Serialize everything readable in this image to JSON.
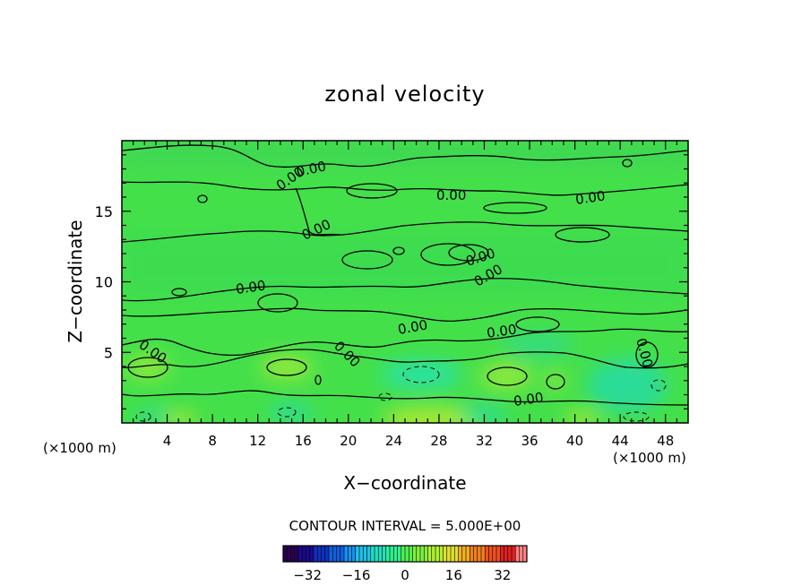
{
  "chart_data": {
    "type": "contour",
    "title": "zonal velocity",
    "xlabel": "X−coordinate",
    "ylabel": "Z−coordinate",
    "x_unit_left": "(×1000 m)",
    "x_unit_right": "(×1000 m)",
    "xlim": [
      0,
      50
    ],
    "ylim": [
      0,
      20
    ],
    "x_ticks": [
      "4",
      "8",
      "12",
      "16",
      "20",
      "24",
      "28",
      "32",
      "36",
      "40",
      "44",
      "48"
    ],
    "y_ticks": [
      "5",
      "10",
      "15"
    ],
    "contour_label": "0.00",
    "contour_interval_text": "CONTOUR INTERVAL = 5.000E+00",
    "colorbar": {
      "min": -40,
      "max": 40,
      "ticks": [
        "−32",
        "−16",
        "0",
        "16",
        "32"
      ],
      "colors": [
        "#2a0050",
        "#1a0a8c",
        "#1030c0",
        "#1060e0",
        "#1a90f0",
        "#20c0e8",
        "#20e0c0",
        "#30f090",
        "#50f050",
        "#80f040",
        "#b0f030",
        "#e0e030",
        "#f0b020",
        "#f08020",
        "#f05020",
        "#e02020",
        "#ff8080"
      ]
    }
  }
}
